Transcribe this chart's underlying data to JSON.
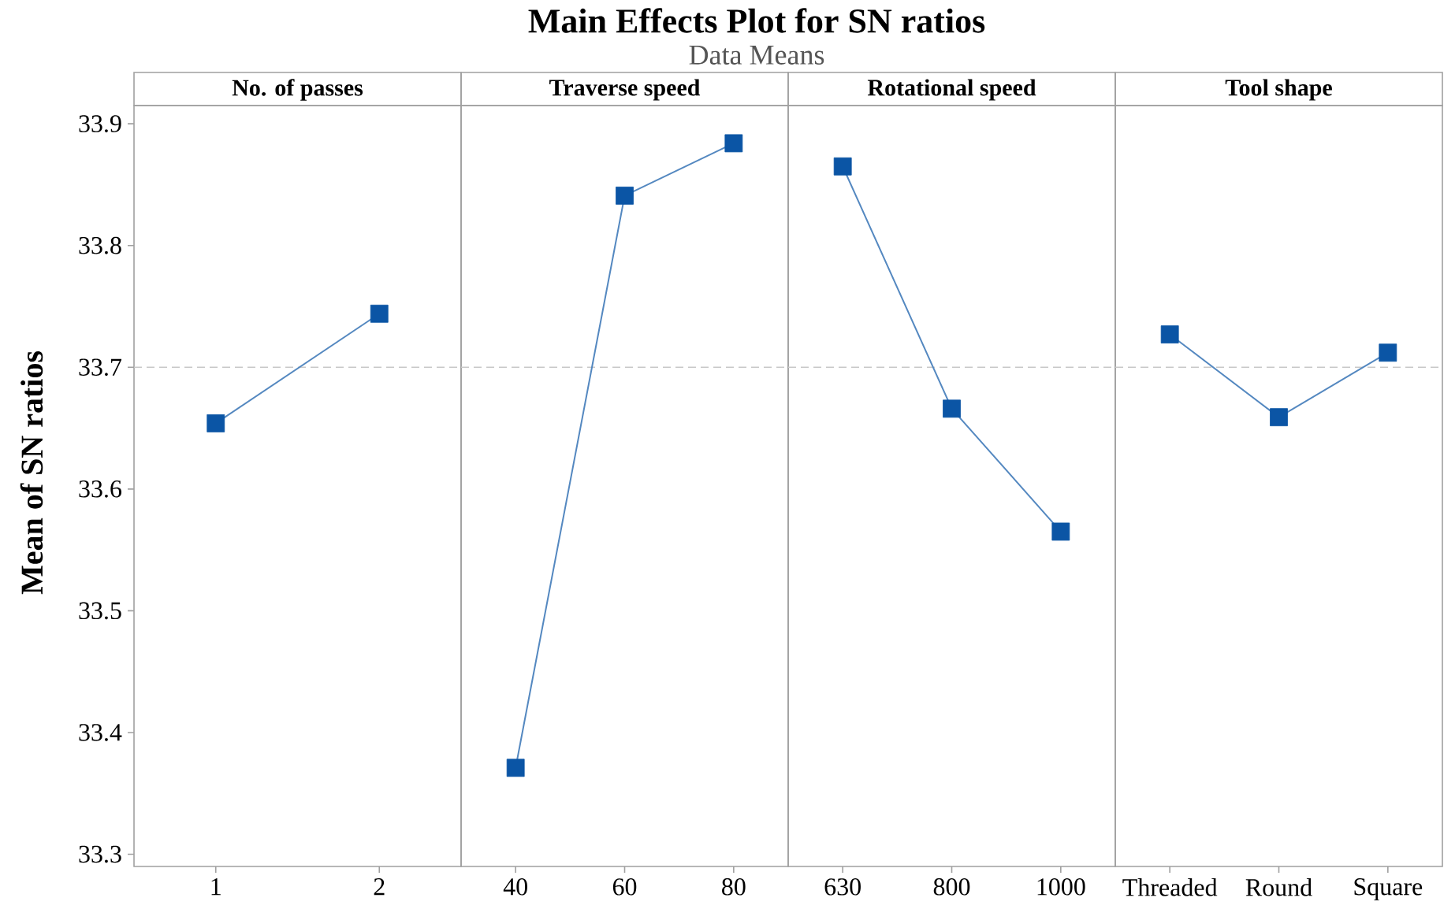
{
  "chart_data": [
    {
      "type": "other",
      "title": "Main Effects Plot for SN ratios",
      "subtitle": "Data Means"
    },
    {
      "type": "line",
      "xlabel": "No. of passes",
      "ylabel": "Mean of SN ratios",
      "categories": [
        "1",
        "2"
      ],
      "values": [
        33.654,
        33.744
      ],
      "color": "#0b55a5",
      "marker": "square",
      "line_style": "solid",
      "ylim": [
        33.29,
        33.915
      ],
      "yticks": [
        33.3,
        33.4,
        33.5,
        33.6,
        33.7,
        33.8,
        33.9
      ],
      "ref_lines": [
        {
          "axis": "y",
          "value": 33.7,
          "color": "#c8c8c8",
          "line_style": "dashed"
        }
      ]
    },
    {
      "type": "line",
      "xlabel": "Traverse speed",
      "categories": [
        "40",
        "60",
        "80"
      ],
      "values": [
        33.371,
        33.841,
        33.884
      ],
      "color": "#0b55a5",
      "marker": "square",
      "line_style": "solid",
      "ylim": [
        33.29,
        33.915
      ],
      "tick_labels": "x",
      "ref_lines": [
        {
          "axis": "y",
          "value": 33.7,
          "color": "#c8c8c8",
          "line_style": "dashed"
        }
      ]
    },
    {
      "type": "line",
      "xlabel": "Rotational speed",
      "categories": [
        "630",
        "800",
        "1000"
      ],
      "values": [
        33.865,
        33.666,
        33.565
      ],
      "color": "#0b55a5",
      "marker": "square",
      "line_style": "solid",
      "ylim": [
        33.29,
        33.915
      ],
      "tick_labels": "x",
      "ref_lines": [
        {
          "axis": "y",
          "value": 33.7,
          "color": "#c8c8c8",
          "line_style": "dashed"
        }
      ]
    },
    {
      "type": "line",
      "xlabel": "Tool shape",
      "categories": [
        "Threaded",
        "Round",
        "Square"
      ],
      "values": [
        33.727,
        33.659,
        33.712
      ],
      "color": "#0b55a5",
      "marker": "square",
      "line_style": "solid",
      "ylim": [
        33.29,
        33.915
      ],
      "tick_labels": "x",
      "ref_lines": [
        {
          "axis": "y",
          "value": 33.7,
          "color": "#c8c8c8",
          "line_style": "dashed"
        }
      ]
    }
  ]
}
